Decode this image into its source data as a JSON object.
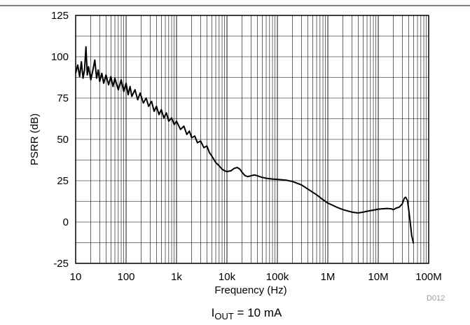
{
  "figure_id": "D012",
  "caption": {
    "main": "I",
    "subscript": "OUT",
    "rest": " = 10 mA"
  },
  "chart_data": {
    "type": "line",
    "xlabel": "Frequency (Hz)",
    "ylabel": "PSRR (dB)",
    "xscale": "log",
    "xlim": [
      10,
      100000000
    ],
    "ylim": [
      -25,
      125
    ],
    "grid": true,
    "x_ticks": [
      {
        "value": 10,
        "label": "10"
      },
      {
        "value": 100,
        "label": "100"
      },
      {
        "value": 1000,
        "label": "1k"
      },
      {
        "value": 10000,
        "label": "10k"
      },
      {
        "value": 100000,
        "label": "100k"
      },
      {
        "value": 1000000,
        "label": "1M"
      },
      {
        "value": 10000000,
        "label": "10M"
      },
      {
        "value": 100000000,
        "label": "100M"
      }
    ],
    "y_ticks": [
      {
        "value": -25,
        "label": "-25"
      },
      {
        "value": 0,
        "label": "0"
      },
      {
        "value": 25,
        "label": "25"
      },
      {
        "value": 50,
        "label": "50"
      },
      {
        "value": 75,
        "label": "75"
      },
      {
        "value": 100,
        "label": "100"
      },
      {
        "value": 125,
        "label": "125"
      }
    ],
    "series": [
      {
        "color": "#000000",
        "points": [
          [
            10,
            90
          ],
          [
            11,
            95
          ],
          [
            12,
            88
          ],
          [
            13,
            97
          ],
          [
            14,
            87
          ],
          [
            15,
            92
          ],
          [
            16,
            106
          ],
          [
            17,
            89
          ],
          [
            18,
            94
          ],
          [
            20,
            86
          ],
          [
            22,
            92
          ],
          [
            24,
            98
          ],
          [
            26,
            87
          ],
          [
            28,
            92
          ],
          [
            30,
            85
          ],
          [
            33,
            90
          ],
          [
            36,
            84
          ],
          [
            40,
            89
          ],
          [
            45,
            83
          ],
          [
            50,
            88
          ],
          [
            55,
            82
          ],
          [
            60,
            87
          ],
          [
            70,
            80
          ],
          [
            80,
            86
          ],
          [
            90,
            79
          ],
          [
            100,
            84
          ],
          [
            110,
            77
          ],
          [
            120,
            82
          ],
          [
            130,
            76
          ],
          [
            150,
            80
          ],
          [
            170,
            74
          ],
          [
            190,
            78
          ],
          [
            220,
            72
          ],
          [
            250,
            75
          ],
          [
            280,
            70
          ],
          [
            320,
            73
          ],
          [
            360,
            67
          ],
          [
            400,
            70
          ],
          [
            450,
            65
          ],
          [
            500,
            68
          ],
          [
            560,
            63
          ],
          [
            630,
            66
          ],
          [
            700,
            61
          ],
          [
            800,
            63
          ],
          [
            900,
            59
          ],
          [
            1000,
            61
          ],
          [
            1200,
            56
          ],
          [
            1400,
            58
          ],
          [
            1600,
            53
          ],
          [
            1800,
            55
          ],
          [
            2000,
            51
          ],
          [
            2300,
            52
          ],
          [
            2600,
            48
          ],
          [
            3000,
            49
          ],
          [
            3500,
            45
          ],
          [
            4000,
            46
          ],
          [
            4500,
            42
          ],
          [
            5000,
            40
          ],
          [
            6000,
            36
          ],
          [
            7000,
            34
          ],
          [
            8000,
            32
          ],
          [
            9000,
            31
          ],
          [
            10000,
            30.5
          ],
          [
            12000,
            31
          ],
          [
            14000,
            32.5
          ],
          [
            16000,
            33
          ],
          [
            18000,
            32
          ],
          [
            20000,
            30
          ],
          [
            23000,
            28
          ],
          [
            26000,
            27.5
          ],
          [
            30000,
            28
          ],
          [
            35000,
            28.5
          ],
          [
            40000,
            28
          ],
          [
            50000,
            27
          ],
          [
            60000,
            26.5
          ],
          [
            80000,
            26
          ],
          [
            100000,
            25.8
          ],
          [
            150000,
            25.3
          ],
          [
            200000,
            24.5
          ],
          [
            300000,
            22.5
          ],
          [
            400000,
            20
          ],
          [
            600000,
            16.5
          ],
          [
            800000,
            13.5
          ],
          [
            1000000,
            11.5
          ],
          [
            1500000,
            9
          ],
          [
            2000000,
            7.5
          ],
          [
            3000000,
            6
          ],
          [
            4000000,
            5.5
          ],
          [
            5000000,
            6
          ],
          [
            6000000,
            6.5
          ],
          [
            8000000,
            7.2
          ],
          [
            10000000,
            7.8
          ],
          [
            12000000,
            8
          ],
          [
            15000000,
            8.2
          ],
          [
            18000000,
            8
          ],
          [
            20000000,
            7.5
          ],
          [
            23000000,
            8.5
          ],
          [
            26000000,
            9
          ],
          [
            30000000,
            11
          ],
          [
            33000000,
            14.5
          ],
          [
            35000000,
            15
          ],
          [
            38000000,
            13
          ],
          [
            40000000,
            8
          ],
          [
            43000000,
            0
          ],
          [
            46000000,
            -8
          ],
          [
            50000000,
            -13
          ]
        ]
      }
    ]
  }
}
